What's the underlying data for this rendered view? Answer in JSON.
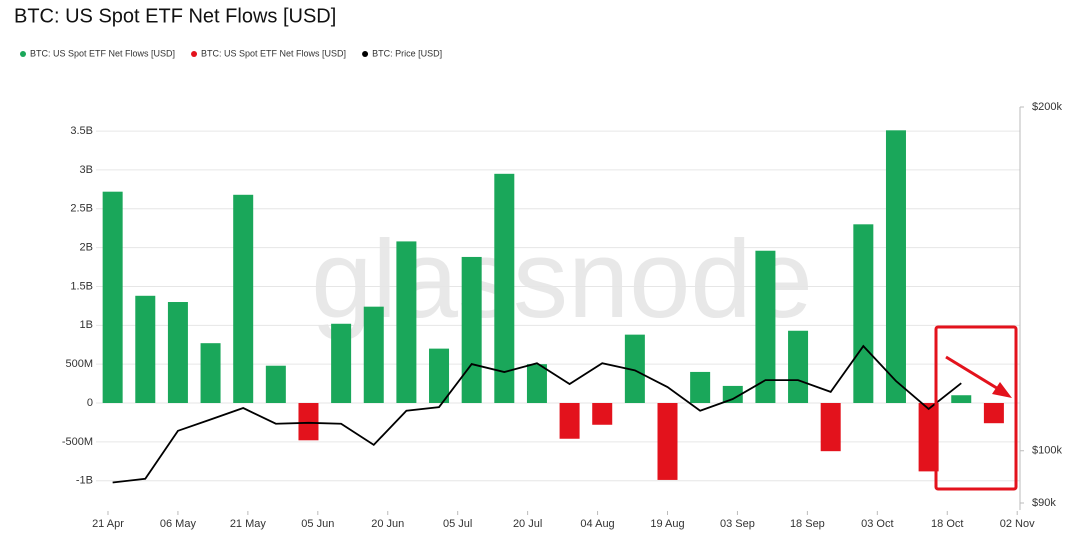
{
  "chart_data": {
    "type": "bar",
    "title": "BTC: US Spot ETF Net Flows [USD]",
    "watermark": "glassnode",
    "x": [
      1,
      8,
      15,
      22,
      29,
      36,
      43,
      50,
      57,
      64,
      71,
      78,
      85,
      92,
      99,
      106,
      113,
      120,
      127,
      134,
      141,
      148,
      155,
      162,
      169,
      176,
      183,
      190
    ],
    "series": [
      {
        "name": "BTC: US Spot ETF Net Flows [USD]",
        "color": "#1aa75a",
        "values": [
          2720000000,
          1380000000,
          1300000000,
          770000000,
          2680000000,
          480000000,
          null,
          1020000000,
          1240000000,
          2080000000,
          700000000,
          1880000000,
          2950000000,
          500000000,
          null,
          null,
          880000000,
          null,
          400000000,
          220000000,
          1960000000,
          930000000,
          null,
          2300000000,
          3510000000,
          null,
          100000000,
          null
        ]
      },
      {
        "name": "BTC: US Spot ETF Net Flows [USD]",
        "color": "#e3121c",
        "values": [
          null,
          null,
          null,
          null,
          null,
          null,
          -480000000,
          null,
          null,
          null,
          null,
          null,
          null,
          null,
          -460000000,
          -280000000,
          null,
          -990000000,
          null,
          null,
          null,
          null,
          -620000000,
          null,
          null,
          -880000000,
          null,
          -260000000
        ]
      },
      {
        "name": "BTC: Price [USD]",
        "color": "#000000",
        "axis": "y2",
        "line": true,
        "values": [
          93800,
          94500,
          104100,
          106500,
          109000,
          105600,
          105800,
          105600,
          101200,
          108400,
          109200,
          119100,
          117200,
          119300,
          114400,
          119300,
          117600,
          113700,
          108400,
          111000,
          115300,
          115300,
          112600,
          123500,
          115100,
          108800,
          114600,
          null
        ]
      }
    ],
    "xlim": [
      -2.57,
      195.6
    ],
    "xticks": [
      {
        "value": 0,
        "label": "21 Apr"
      },
      {
        "value": 15,
        "label": "06 May"
      },
      {
        "value": 30,
        "label": "21 May"
      },
      {
        "value": 45,
        "label": "05 Jun"
      },
      {
        "value": 60,
        "label": "20 Jun"
      },
      {
        "value": 75,
        "label": "05 Jul"
      },
      {
        "value": 90,
        "label": "20 Jul"
      },
      {
        "value": 105,
        "label": "04 Aug"
      },
      {
        "value": 120,
        "label": "19 Aug"
      },
      {
        "value": 135,
        "label": "03 Sep"
      },
      {
        "value": 150,
        "label": "18 Sep"
      },
      {
        "value": 165,
        "label": "03 Oct"
      },
      {
        "value": 180,
        "label": "18 Oct"
      },
      {
        "value": 195,
        "label": "02 Nov"
      }
    ],
    "ylim": [
      -1287000000,
      3810000000
    ],
    "yticks": [
      {
        "value": -1000000000,
        "label": "-1B"
      },
      {
        "value": -500000000,
        "label": "-500M"
      },
      0,
      {
        "value": 500000000,
        "label": "500M"
      },
      {
        "value": 1000000000,
        "label": "1B"
      },
      {
        "value": 1500000000,
        "label": "1.5B"
      },
      {
        "value": 2000000000,
        "label": "2B"
      },
      {
        "value": 2500000000,
        "label": "2.5B"
      },
      {
        "value": 3000000000,
        "label": "3B"
      },
      {
        "value": 3500000000,
        "label": "3.5B"
      }
    ],
    "y2lim": [
      90000,
      200000
    ],
    "y2ticks": [
      {
        "value": 90000,
        "label": "$90k"
      },
      {
        "value": 100000,
        "label": "$100k"
      },
      {
        "value": 200000,
        "label": "$200k"
      }
    ],
    "y2log": true,
    "grid": true
  }
}
